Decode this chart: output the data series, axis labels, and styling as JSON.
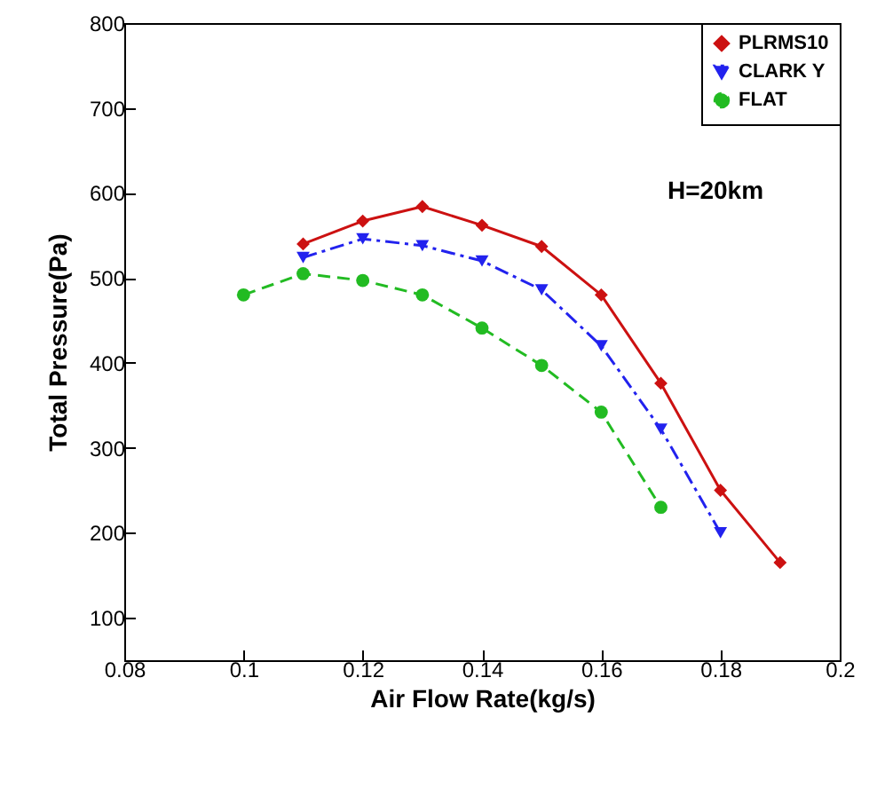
{
  "chart_data": {
    "type": "line",
    "xlabel": "Air Flow Rate(kg/s)",
    "ylabel": "Total Pressure(Pa)",
    "xlim": [
      0.08,
      0.2
    ],
    "xticks": [
      0.08,
      0.1,
      0.12,
      0.14,
      0.16,
      0.18,
      0.2
    ],
    "ylim": [
      50,
      800
    ],
    "yticks": [
      100,
      200,
      300,
      400,
      500,
      600,
      700,
      800
    ],
    "grid": false,
    "legend": "top right",
    "annotations": [
      "H=20km"
    ],
    "series": [
      {
        "name": "PLRMS10",
        "color": "#cc1111",
        "marker": "diamond",
        "line_style": "solid",
        "x": [
          0.11,
          0.12,
          0.13,
          0.14,
          0.15,
          0.16,
          0.17,
          0.18,
          0.19
        ],
        "values": [
          540,
          567,
          584,
          562,
          537,
          480,
          376,
          250,
          165
        ]
      },
      {
        "name": "CLARK Y",
        "color": "#2222ee",
        "marker": "triangle",
        "line_style": "dashdot",
        "x": [
          0.11,
          0.12,
          0.13,
          0.14,
          0.15,
          0.16,
          0.17,
          0.18
        ],
        "values": [
          524,
          546,
          538,
          520,
          486,
          420,
          322,
          200
        ]
      },
      {
        "name": "FLAT",
        "color": "#22bb22",
        "marker": "circle",
        "line_style": "dashed",
        "x": [
          0.1,
          0.11,
          0.12,
          0.13,
          0.14,
          0.15,
          0.16,
          0.17
        ],
        "values": [
          480,
          505,
          497,
          480,
          441,
          397,
          342,
          230
        ]
      }
    ]
  }
}
